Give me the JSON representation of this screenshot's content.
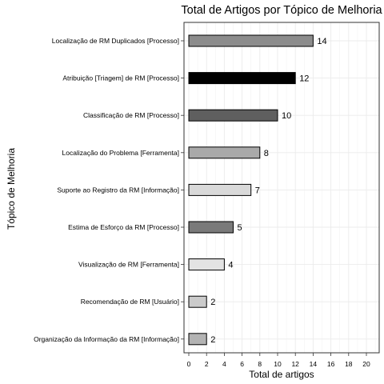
{
  "chart_data": {
    "type": "bar",
    "orientation": "horizontal",
    "title": "Total de Artigos por Tópico de Melhoria",
    "xlabel": "Total de artigos",
    "ylabel": "Tópico de Melhoria",
    "xlim": [
      0,
      21
    ],
    "xticks": [
      "0",
      "2",
      "4",
      "6",
      "8",
      "10",
      "12",
      "14",
      "16",
      "18",
      "20"
    ],
    "grid": true,
    "legend": "none",
    "categories": [
      "Localização de RM Duplicados [Processo]",
      "Atribuição [Triagem] de RM [Processo]",
      "Classificação de RM [Processo]",
      "Localização do Problema [Ferramenta]",
      "Suporte ao Registro da RM [Informação]",
      "Estima de Esforço da RM [Processo]",
      "Visualização de RM [Ferramenta]",
      "Recomendação de RM [Usuário]",
      "Organização da Informação da RM [Informação]"
    ],
    "values": [
      14,
      12,
      10,
      8,
      7,
      5,
      4,
      2,
      2
    ],
    "value_labels": [
      "14",
      "12",
      "10",
      "8",
      "7",
      "5",
      "4",
      "2",
      "2"
    ],
    "colors": [
      "#8c8c8c",
      "#000000",
      "#5f5f5f",
      "#a9a9a9",
      "#d9d9d9",
      "#7a7a7a",
      "#e3e3e3",
      "#cbcbcb",
      "#b3b3b3"
    ]
  }
}
